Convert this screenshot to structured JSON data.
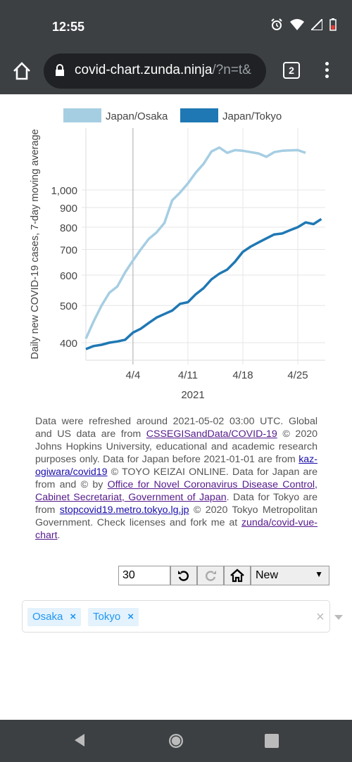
{
  "status": {
    "time": "12:55",
    "alarm_icon": "alarm-icon",
    "wifi_icon": "wifi-icon",
    "signal_icon": "signal-icon",
    "battery_icon": "battery-low-icon"
  },
  "browser": {
    "url_main": "covid-chart.zunda.ninja",
    "url_rest": "/?n=t&",
    "tab_count": "2"
  },
  "chart_data": {
    "type": "line",
    "ylabel": "Daily new COVID-19 cases, 7-day moving average",
    "xlabel": "2021",
    "y_scale": "log",
    "ylim": [
      360,
      1450
    ],
    "y_ticks": [
      400,
      500,
      600,
      700,
      800,
      900,
      1000
    ],
    "y_tick_labels": [
      "400",
      "500",
      "600",
      "700",
      "800",
      "900",
      "1,000"
    ],
    "x_ticks": [
      3,
      10,
      17,
      24
    ],
    "x_tick_labels": [
      "4/4",
      "4/11",
      "4/18",
      "4/25"
    ],
    "x_range": [
      -3,
      27.5
    ],
    "grid": true,
    "legend_position": "top",
    "series": [
      {
        "name": "Japan/Osaka",
        "color": "#a6cee3",
        "x": [
          -3,
          -2,
          -1,
          0,
          1,
          2,
          3,
          4,
          5,
          6,
          7,
          8,
          9,
          10,
          11,
          12,
          13,
          14,
          15,
          16,
          17,
          18,
          19,
          20,
          21,
          22,
          23,
          24,
          25,
          26,
          27
        ],
        "values": [
          410,
          455,
          500,
          540,
          560,
          610,
          655,
          700,
          745,
          775,
          820,
          940,
          985,
          1040,
          1110,
          1170,
          1260,
          1290,
          1250,
          1270,
          1265,
          1255,
          1245,
          1220,
          1255,
          1265,
          1268,
          1270,
          1250,
          0,
          0
        ]
      },
      {
        "name": "Japan/Tokyo",
        "color": "#1f78b4",
        "x": [
          -3,
          -2,
          -1,
          0,
          1,
          2,
          3,
          4,
          5,
          6,
          7,
          8,
          9,
          10,
          11,
          12,
          13,
          14,
          15,
          16,
          17,
          18,
          19,
          20,
          21,
          22,
          23,
          24,
          25,
          26,
          27
        ],
        "values": [
          385,
          392,
          395,
          400,
          403,
          407,
          425,
          435,
          450,
          465,
          475,
          485,
          505,
          510,
          535,
          555,
          585,
          605,
          620,
          650,
          690,
          712,
          730,
          748,
          766,
          770,
          785,
          800,
          823,
          815,
          840
        ]
      }
    ]
  },
  "info": {
    "t1": "Data were refreshed around 2021-05-02 03:00 UTC. Global and US data are from ",
    "l1": "CSSEGISandData/COVID-19",
    "t2": " © 2020 Johns Hopkins University, educational and academic research purposes only. Data for Japan before 2021-01-01 are from ",
    "l2": "kaz-ogiwara/covid19",
    "t3": " © TOYO KEIZAI ONLINE. Data for Japan are from and © by ",
    "l3": "Office for Novel Coronavirus Disease Control, Cabinet Secretariat, Government of Japan",
    "t4": ". Data for Tokyo are from ",
    "l4": "stopcovid19.metro.tokyo.lg.jp",
    "t5": " © 2020 Tokyo Metropolitan Government. Check licenses and fork me at ",
    "l5": "zunda/covid-vue-chart",
    "t6": "."
  },
  "controls": {
    "days_value": "30",
    "select_value": "New"
  },
  "selected_regions": [
    {
      "label": "Osaka",
      "remove": "×"
    },
    {
      "label": "Tokyo",
      "remove": "×"
    }
  ],
  "clear_label": "×"
}
